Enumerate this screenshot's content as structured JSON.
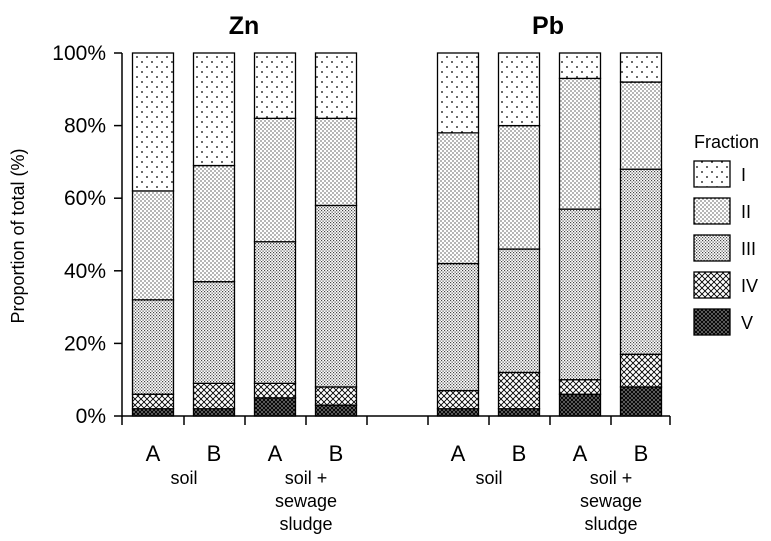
{
  "chart_data": {
    "type": "bar",
    "stacked": true,
    "percent": true,
    "panels": [
      "Zn",
      "Pb"
    ],
    "ylabel": "Proportion of total (%)",
    "ylim": [
      0,
      100
    ],
    "y_ticks": [
      "0%",
      "20%",
      "40%",
      "60%",
      "80%",
      "100%"
    ],
    "legend": {
      "title": "Fraction",
      "placement": "right",
      "entries": [
        "I",
        "II",
        "III",
        "IV",
        "V"
      ]
    },
    "bars": [
      {
        "panel": "Zn",
        "label": "A",
        "group": "soil",
        "values": {
          "V": 2,
          "IV": 4,
          "III": 26,
          "II": 30,
          "I": 38
        }
      },
      {
        "panel": "Zn",
        "label": "B",
        "group": "soil",
        "values": {
          "V": 2,
          "IV": 7,
          "III": 28,
          "II": 32,
          "I": 31
        }
      },
      {
        "panel": "Zn",
        "label": "A",
        "group": "soil + sewage sludge",
        "values": {
          "V": 5,
          "IV": 4,
          "III": 39,
          "II": 34,
          "I": 18
        }
      },
      {
        "panel": "Zn",
        "label": "B",
        "group": "soil + sewage sludge",
        "values": {
          "V": 3,
          "IV": 5,
          "III": 50,
          "II": 24,
          "I": 18
        }
      },
      {
        "panel": "Pb",
        "label": "A",
        "group": "soil",
        "values": {
          "V": 2,
          "IV": 5,
          "III": 35,
          "II": 36,
          "I": 22
        }
      },
      {
        "panel": "Pb",
        "label": "B",
        "group": "soil",
        "values": {
          "V": 2,
          "IV": 10,
          "III": 34,
          "II": 34,
          "I": 20
        }
      },
      {
        "panel": "Pb",
        "label": "A",
        "group": "soil + sewage sludge",
        "values": {
          "V": 6,
          "IV": 4,
          "III": 47,
          "II": 36,
          "I": 7
        }
      },
      {
        "panel": "Pb",
        "label": "B",
        "group": "soil + sewage sludge",
        "values": {
          "V": 8,
          "IV": 9,
          "III": 51,
          "II": 24,
          "I": 8
        }
      }
    ],
    "groups": [
      {
        "panel": "Zn",
        "lines": [
          "soil"
        ]
      },
      {
        "panel": "Zn",
        "lines": [
          "soil +",
          "sewage",
          "sludge"
        ]
      },
      {
        "panel": "Pb",
        "lines": [
          "soil"
        ]
      },
      {
        "panel": "Pb",
        "lines": [
          "soil +",
          "sewage",
          "sludge"
        ]
      }
    ],
    "grid": false
  }
}
